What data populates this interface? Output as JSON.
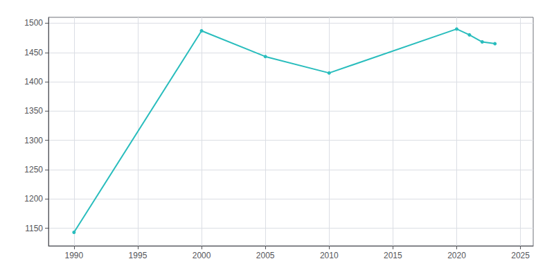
{
  "chart_data": {
    "type": "line",
    "x": [
      1990,
      2000,
      2005,
      2010,
      2020,
      2021,
      2022,
      2023
    ],
    "values": [
      1143,
      1487,
      1443,
      1415,
      1490,
      1480,
      1468,
      1465
    ],
    "color": "#29BDBD",
    "marker": "circle",
    "xlim": [
      1988,
      2026
    ],
    "xticks": [
      1990,
      1995,
      2000,
      2005,
      2010,
      2015,
      2020,
      2025
    ],
    "ylim": [
      1120,
      1510
    ],
    "yticks": [
      1150,
      1200,
      1250,
      1300,
      1350,
      1400,
      1450,
      1500
    ],
    "grid": true
  }
}
